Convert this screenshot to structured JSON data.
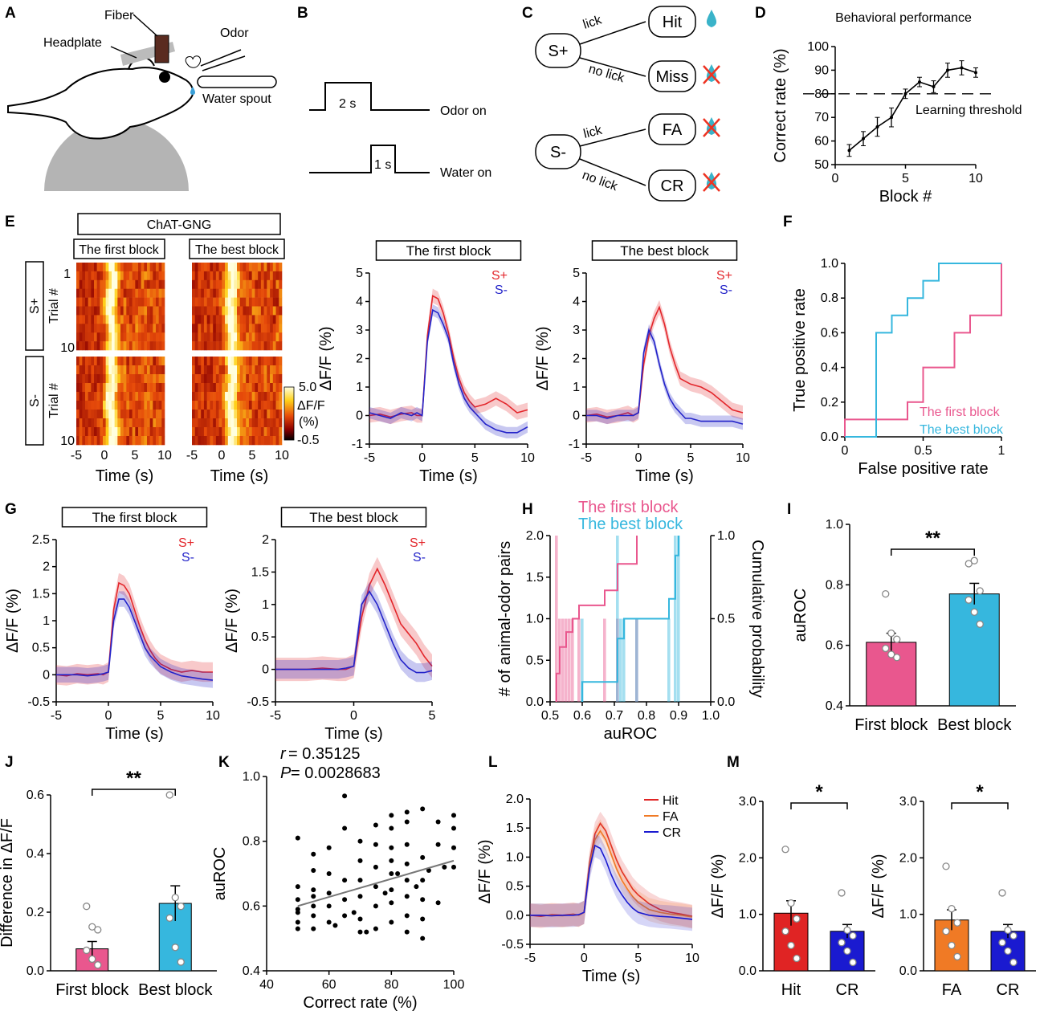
{
  "colors": {
    "splus": "#e3262b",
    "sminus": "#2323c9",
    "first": "#e9578e",
    "best": "#36b7de",
    "hit": "#e02424",
    "fa": "#f07a25",
    "cr": "#1a1ad0"
  },
  "panels": {
    "A": {
      "label": "A",
      "fiber": "Fiber",
      "headplate": "Headplate",
      "odor": "Odor",
      "spout": "Water spout"
    },
    "B": {
      "label": "B",
      "t1": "2 s",
      "odor_on": "Odor on",
      "t2": "1 s",
      "water_on": "Water on"
    },
    "C": {
      "label": "C",
      "splus": "S+",
      "sminus": "S-",
      "lick": "lick",
      "nolick": "no lick",
      "hit": "Hit",
      "miss": "Miss",
      "fa": "FA",
      "cr": "CR"
    },
    "D": {
      "label": "D",
      "title": "Behavioral performance",
      "threshold": "Learning threshold"
    },
    "E": {
      "label": "E",
      "group": "ChAT-GNG",
      "first": "The first block",
      "best": "The best block",
      "trial": "Trial #",
      "splus": "S+",
      "sminus": "S-",
      "t1": "1",
      "t10": "10",
      "cb_title": "ΔF/F",
      "cb_unit": "(%)",
      "cb_max": "5.0",
      "cb_min": "-0.5",
      "time": "Time (s)",
      "xt": [
        "-5",
        "0",
        "5",
        "10"
      ]
    },
    "F": {
      "label": "F"
    },
    "G": {
      "label": "G"
    },
    "H": {
      "label": "H",
      "first": "The first block",
      "best": "The best block"
    },
    "I": {
      "label": "I",
      "sig": "**",
      "xcats": [
        "First block",
        "Best block"
      ]
    },
    "J": {
      "label": "J",
      "sig": "**",
      "xcats": [
        "First block",
        "Best block"
      ]
    },
    "K": {
      "label": "K",
      "r": "r",
      "r_val": " = 0.35125",
      "p": "P",
      "p_val": " = 0.0028683"
    },
    "L": {
      "label": "L"
    },
    "M": {
      "label": "M",
      "sig": "*"
    }
  },
  "chart_data": [
    {
      "id": "D",
      "type": "line",
      "title": "Behavioral performance",
      "xlabel": "Block #",
      "ylabel": "Correct rate (%)",
      "xlim": [
        0,
        10
      ],
      "ylim": [
        50,
        100
      ],
      "xticks": [
        0,
        5,
        10
      ],
      "yticks": [
        50,
        60,
        70,
        80,
        90,
        100
      ],
      "x": [
        1,
        2,
        3,
        4,
        5,
        6,
        7,
        8,
        9,
        10
      ],
      "values": [
        56,
        61,
        66,
        70,
        80,
        85,
        83,
        90,
        91,
        89
      ],
      "errors": [
        2.5,
        3,
        4,
        4,
        2,
        2,
        2.5,
        3,
        3,
        2
      ],
      "threshold": 80
    },
    {
      "id": "E1",
      "type": "line",
      "title": "The first block",
      "xlabel": "Time (s)",
      "ylabel": "ΔF/F (%)",
      "xlim": [
        -5,
        10
      ],
      "ylim": [
        -1,
        5
      ],
      "xticks": [
        -5,
        0,
        5,
        10
      ],
      "yticks": [
        -1,
        0,
        1,
        2,
        3,
        4,
        5
      ],
      "x": [
        -5,
        -4,
        -3,
        -2,
        -1,
        -0.5,
        0,
        0.5,
        1,
        1.5,
        2,
        2.5,
        3,
        3.5,
        4,
        4.5,
        5,
        6,
        7,
        8,
        9,
        10
      ],
      "series": [
        {
          "name": "S+",
          "values": [
            0,
            0.05,
            -0.05,
            0.05,
            0.1,
            0,
            0,
            2.8,
            4.2,
            4.1,
            3.6,
            2.9,
            2.0,
            1.3,
            0.8,
            0.5,
            0.3,
            0.4,
            0.6,
            0.4,
            0.1,
            0.2
          ]
        },
        {
          "name": "S-",
          "values": [
            0.1,
            0,
            -0.1,
            0.1,
            0,
            0.1,
            0,
            2.6,
            3.7,
            3.6,
            3.2,
            2.7,
            1.8,
            1.1,
            0.6,
            0.3,
            0.1,
            -0.3,
            -0.5,
            -0.6,
            -0.6,
            -0.4
          ]
        }
      ]
    },
    {
      "id": "E2",
      "type": "line",
      "title": "The best block",
      "xlabel": "Time (s)",
      "ylabel": "ΔF/F (%)",
      "xlim": [
        -5,
        10
      ],
      "ylim": [
        -1,
        5
      ],
      "xticks": [
        -5,
        0,
        5,
        10
      ],
      "yticks": [
        -1,
        0,
        1,
        2,
        3,
        4,
        5
      ],
      "x": [
        -5,
        -4,
        -3,
        -2,
        -1,
        -0.5,
        0,
        0.5,
        1,
        1.5,
        2,
        2.5,
        3,
        3.5,
        4,
        4.5,
        5,
        6,
        7,
        8,
        9,
        10
      ],
      "series": [
        {
          "name": "S+",
          "values": [
            0,
            0.05,
            -0.05,
            0,
            0.1,
            0,
            0.1,
            1.8,
            2.8,
            3.4,
            3.8,
            3.2,
            2.4,
            1.8,
            1.3,
            1.2,
            1.1,
            1.0,
            0.8,
            0.5,
            0.2,
            0.1
          ]
        },
        {
          "name": "S-",
          "values": [
            0,
            0,
            -0.1,
            0,
            0,
            0,
            0.1,
            2.2,
            3.0,
            2.6,
            1.8,
            1.1,
            0.6,
            0.3,
            0.1,
            -0.1,
            -0.1,
            -0.2,
            -0.2,
            -0.2,
            -0.2,
            -0.3
          ]
        }
      ]
    },
    {
      "id": "F",
      "type": "line",
      "xlabel": "False positive rate",
      "ylabel": "True positive rate",
      "xlim": [
        0,
        1
      ],
      "ylim": [
        0,
        1
      ],
      "xticks": [
        0,
        0.5,
        1
      ],
      "yticks": [
        0,
        0.2,
        0.4,
        0.6,
        0.8,
        1.0
      ],
      "series": [
        {
          "name": "The first block",
          "x": [
            0,
            0,
            0.4,
            0.4,
            0.5,
            0.5,
            0.7,
            0.7,
            0.8,
            0.8,
            1,
            1,
            1
          ],
          "values": [
            0,
            0.1,
            0.1,
            0.2,
            0.2,
            0.4,
            0.4,
            0.6,
            0.6,
            0.7,
            0.7,
            1,
            1
          ]
        },
        {
          "name": "The best block",
          "x": [
            0,
            0.2,
            0.2,
            0.3,
            0.3,
            0.4,
            0.4,
            0.5,
            0.5,
            0.6,
            0.6,
            1
          ],
          "values": [
            0,
            0,
            0.6,
            0.6,
            0.7,
            0.7,
            0.8,
            0.8,
            0.9,
            0.9,
            1,
            1
          ]
        }
      ]
    },
    {
      "id": "G1",
      "type": "line",
      "title": "The first block",
      "xlabel": "Time (s)",
      "ylabel": "ΔF/F (%)",
      "xlim": [
        -5,
        10
      ],
      "ylim": [
        -0.5,
        2.5
      ],
      "xticks": [
        -5,
        0,
        5,
        10
      ],
      "yticks": [
        -0.5,
        0,
        0.5,
        1.0,
        1.5,
        2.0,
        2.5
      ],
      "x": [
        -5,
        -4,
        -3,
        -2,
        -1,
        -0.5,
        0,
        0.5,
        1,
        1.5,
        2,
        2.5,
        3,
        3.5,
        4,
        4.5,
        5,
        6,
        7,
        8,
        9,
        10
      ],
      "series": [
        {
          "name": "S+",
          "values": [
            0,
            -0.02,
            0.02,
            0,
            0.02,
            0,
            0.05,
            1.2,
            1.7,
            1.65,
            1.5,
            1.2,
            0.9,
            0.65,
            0.45,
            0.3,
            0.2,
            0.1,
            0.05,
            0.08,
            0.05,
            0.05
          ]
        },
        {
          "name": "S-",
          "values": [
            0,
            0,
            0,
            -0.02,
            0,
            0.02,
            0.05,
            1.0,
            1.4,
            1.4,
            1.25,
            1.0,
            0.75,
            0.5,
            0.35,
            0.25,
            0.15,
            0.05,
            -0.02,
            -0.05,
            -0.08,
            -0.1
          ]
        }
      ]
    },
    {
      "id": "G2",
      "type": "line",
      "title": "The best block",
      "xlabel": "Time (s)",
      "ylabel": "ΔF/F (%)",
      "xlim": [
        -5,
        5
      ],
      "ylim": [
        -0.5,
        2.0
      ],
      "xticks": [
        -5,
        0,
        5
      ],
      "yticks": [
        -0.5,
        0,
        0.5,
        1.0,
        1.5,
        2.0
      ],
      "x": [
        -5,
        -4,
        -3,
        -2,
        -1,
        -0.5,
        0,
        0.5,
        1,
        1.5,
        2,
        2.5,
        3,
        3.5,
        4,
        4.5,
        5
      ],
      "series": [
        {
          "name": "S+",
          "values": [
            0,
            0,
            0,
            0.02,
            0,
            0,
            0.05,
            0.8,
            1.3,
            1.55,
            1.3,
            1.0,
            0.7,
            0.55,
            0.4,
            0.2,
            0.05
          ]
        },
        {
          "name": "S-",
          "values": [
            0,
            0,
            0,
            0,
            0,
            0.02,
            0.05,
            1.0,
            1.2,
            1.0,
            0.7,
            0.4,
            0.15,
            0.02,
            -0.05,
            -0.05,
            -0.02
          ]
        }
      ]
    },
    {
      "id": "H",
      "type": "bar",
      "xlabel": "auROC",
      "ylabel": "# of animal-odor pairs",
      "y2label": "Cumulative probability",
      "xlim": [
        0.5,
        1.0
      ],
      "ylim": [
        0,
        2.0
      ],
      "y2lim": [
        0,
        1.0
      ],
      "xticks": [
        0.5,
        0.6,
        0.7,
        0.8,
        0.9,
        1.0
      ],
      "yticks": [
        0,
        0.5,
        1.0,
        1.5,
        2.0
      ],
      "y2ticks": [
        0,
        0.5,
        1.0
      ],
      "series": [
        {
          "name": "The first block",
          "bins": [
            0.52,
            0.53,
            0.54,
            0.55,
            0.56,
            0.57,
            0.59,
            0.67,
            0.71,
            0.77
          ],
          "counts": [
            2,
            1,
            1,
            1,
            1,
            1,
            1,
            1,
            1,
            1
          ]
        },
        {
          "name": "The best block",
          "bins": [
            0.6,
            0.71,
            0.72,
            0.73,
            0.77,
            0.87,
            0.89,
            0.9
          ],
          "counts": [
            1,
            2,
            1,
            1,
            1,
            1,
            2,
            2
          ]
        }
      ],
      "cdf": [
        {
          "name": "The first block",
          "x": [
            0.52,
            0.53,
            0.55,
            0.57,
            0.59,
            0.67,
            0.71,
            0.77,
            0.77
          ],
          "values": [
            0.17,
            0.33,
            0.42,
            0.5,
            0.58,
            0.67,
            0.83,
            0.92,
            1.0
          ]
        },
        {
          "name": "The best block",
          "x": [
            0.6,
            0.71,
            0.73,
            0.77,
            0.87,
            0.89,
            0.9
          ],
          "values": [
            0.12,
            0.38,
            0.5,
            0.5,
            0.62,
            0.88,
            1.0
          ]
        }
      ]
    },
    {
      "id": "I",
      "type": "bar",
      "ylabel": "auROC",
      "categories": [
        "First block",
        "Best block"
      ],
      "values": [
        0.61,
        0.77
      ],
      "errors": [
        0.03,
        0.035
      ],
      "ylim": [
        0.4,
        1.0
      ],
      "yticks": [
        0.4,
        0.6,
        0.8,
        1.0
      ],
      "points": [
        [
          0.77,
          0.64,
          0.62,
          0.59,
          0.57,
          0.56
        ],
        [
          0.87,
          0.88,
          0.78,
          0.75,
          0.71,
          0.67
        ]
      ]
    },
    {
      "id": "J",
      "type": "bar",
      "ylabel": "Difference in ΔF/F",
      "categories": [
        "First block",
        "Best block"
      ],
      "values": [
        0.075,
        0.23
      ],
      "errors": [
        0.025,
        0.06
      ],
      "ylim": [
        0,
        0.6
      ],
      "yticks": [
        0,
        0.2,
        0.4,
        0.6
      ],
      "points": [
        [
          0.22,
          0.15,
          0.14,
          0.07,
          0.04,
          0.02
        ],
        [
          0.6,
          0.25,
          0.22,
          0.18,
          0.08,
          0.03
        ]
      ]
    },
    {
      "id": "K",
      "type": "scatter",
      "xlabel": "Correct rate (%)",
      "ylabel": "auROC",
      "xlim": [
        40,
        100
      ],
      "ylim": [
        0.4,
        1.0
      ],
      "xticks": [
        40,
        60,
        80,
        100
      ],
      "yticks": [
        0.4,
        0.6,
        0.8,
        1.0
      ],
      "fit": {
        "x": [
          50,
          100
        ],
        "y": [
          0.6,
          0.74
        ]
      },
      "x": [
        50,
        50,
        50,
        50,
        50,
        50,
        55,
        55,
        55,
        55,
        55,
        55,
        60,
        60,
        60,
        60,
        60,
        65,
        65,
        65,
        65,
        65,
        70,
        70,
        70,
        70,
        70,
        70,
        75,
        75,
        75,
        75,
        75,
        75,
        80,
        80,
        80,
        80,
        80,
        80,
        80,
        80,
        85,
        85,
        85,
        85,
        85,
        85,
        85,
        85,
        90,
        90,
        90,
        90,
        90,
        90,
        95,
        95,
        95,
        100,
        100,
        100,
        100,
        50,
        55,
        62,
        68,
        72,
        78,
        82,
        88,
        92,
        97
      ],
      "y": [
        0.53,
        0.55,
        0.59,
        0.62,
        0.66,
        0.81,
        0.53,
        0.57,
        0.6,
        0.65,
        0.71,
        0.76,
        0.55,
        0.6,
        0.64,
        0.7,
        0.78,
        0.57,
        0.62,
        0.68,
        0.84,
        0.94,
        0.52,
        0.56,
        0.63,
        0.68,
        0.74,
        0.8,
        0.53,
        0.6,
        0.66,
        0.72,
        0.79,
        0.85,
        0.55,
        0.61,
        0.65,
        0.7,
        0.74,
        0.78,
        0.84,
        0.88,
        0.52,
        0.57,
        0.63,
        0.68,
        0.73,
        0.79,
        0.86,
        0.89,
        0.5,
        0.56,
        0.62,
        0.68,
        0.75,
        0.9,
        0.61,
        0.79,
        0.86,
        0.72,
        0.78,
        0.84,
        0.88,
        0.58,
        0.63,
        0.54,
        0.58,
        0.52,
        0.64,
        0.7,
        0.66,
        0.71,
        0.72
      ]
    },
    {
      "id": "L",
      "type": "line",
      "xlabel": "Time (s)",
      "ylabel": "ΔF/F (%)",
      "xlim": [
        -5,
        10
      ],
      "ylim": [
        -0.5,
        2.0
      ],
      "xticks": [
        -5,
        0,
        5,
        10
      ],
      "yticks": [
        -0.5,
        0,
        0.5,
        1.0,
        1.5,
        2.0
      ],
      "x": [
        -5,
        -4,
        -3,
        -2,
        -1,
        -0.5,
        0,
        0.5,
        1,
        1.5,
        2,
        2.5,
        3,
        3.5,
        4,
        4.5,
        5,
        6,
        7,
        8,
        9,
        10
      ],
      "series": [
        {
          "name": "Hit",
          "values": [
            0,
            -0.02,
            0.01,
            0,
            0.02,
            0,
            0.05,
            0.9,
            1.4,
            1.58,
            1.45,
            1.2,
            0.95,
            0.75,
            0.6,
            0.45,
            0.35,
            0.2,
            0.1,
            0.05,
            0.02,
            -0.02
          ]
        },
        {
          "name": "FA",
          "values": [
            0,
            0,
            0,
            -0.01,
            0.01,
            0,
            0.05,
            0.85,
            1.3,
            1.45,
            1.3,
            1.05,
            0.8,
            0.6,
            0.45,
            0.32,
            0.22,
            0.1,
            0.05,
            0.02,
            0,
            -0.03
          ]
        },
        {
          "name": "CR",
          "values": [
            0,
            0,
            -0.01,
            0,
            0,
            0.01,
            0.05,
            0.8,
            1.2,
            1.15,
            0.95,
            0.7,
            0.5,
            0.35,
            0.22,
            0.12,
            0.05,
            0,
            -0.02,
            -0.03,
            -0.05,
            -0.07
          ]
        }
      ]
    },
    {
      "id": "M1",
      "type": "bar",
      "ylabel": "ΔF/F (%)",
      "categories": [
        "Hit",
        "CR"
      ],
      "values": [
        1.02,
        0.7
      ],
      "errors": [
        0.22,
        0.12
      ],
      "ylim": [
        0,
        3.0
      ],
      "yticks": [
        0,
        1.0,
        2.0,
        3.0
      ],
      "points": [
        [
          2.15,
          1.2,
          0.92,
          0.7,
          0.45,
          0.22
        ],
        [
          1.38,
          0.72,
          0.62,
          0.5,
          0.35,
          0.15
        ]
      ]
    },
    {
      "id": "M2",
      "type": "bar",
      "ylabel": "ΔF/F (%)",
      "categories": [
        "FA",
        "CR"
      ],
      "values": [
        0.9,
        0.7
      ],
      "errors": [
        0.18,
        0.12
      ],
      "ylim": [
        0,
        3.0
      ],
      "yticks": [
        0,
        1.0,
        2.0,
        3.0
      ],
      "points": [
        [
          1.85,
          1.1,
          0.85,
          0.7,
          0.45,
          0.25
        ],
        [
          1.38,
          0.72,
          0.62,
          0.5,
          0.35,
          0.15
        ]
      ]
    }
  ]
}
